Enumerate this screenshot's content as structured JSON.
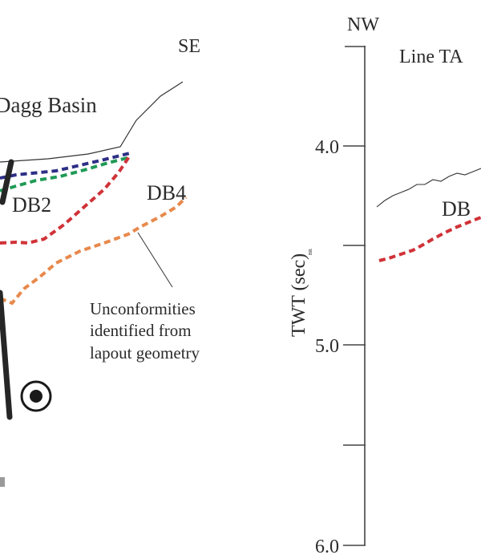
{
  "left_panel": {
    "title": "Dagg Basin",
    "direction_label": "SE",
    "horizon_labels": {
      "db2": "DB2",
      "db4": "DB4"
    },
    "annotation_lines": [
      "Unconformities",
      "identified from",
      "lapout geometry"
    ],
    "colors": {
      "horizon_navy": "#2d2f86",
      "horizon_green": "#1f9a55",
      "horizon_red": "#d03238",
      "horizon_orange": "#e8894c",
      "fault": "#262626",
      "seafloor": "#333333"
    }
  },
  "right_panel": {
    "direction_label": "NW",
    "line_title": "Line TA",
    "horizon_label": "DB",
    "axis": {
      "title": "TWT (sec)",
      "superscript": "BR",
      "tick_labels": [
        "4.0",
        "5.0",
        "6.0"
      ]
    },
    "colors": {
      "horizon_red": "#d03238",
      "axis": "#444444"
    }
  }
}
